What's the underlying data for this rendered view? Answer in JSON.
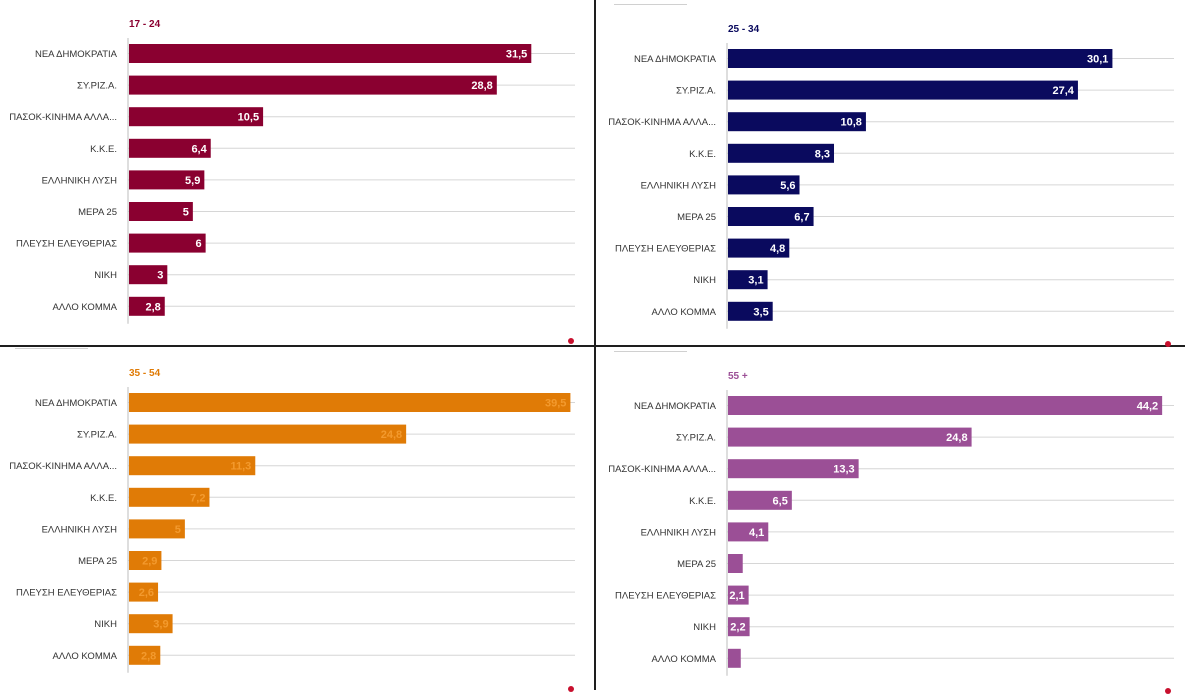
{
  "chart_data": [
    {
      "type": "bar",
      "orientation": "horizontal",
      "title": "17 - 24",
      "color": "#8a0030",
      "label_color": "#ffffff",
      "categories": [
        "ΝΕΑ ΔΗΜΟΚΡΑΤΙΑ",
        "ΣΥ.ΡΙΖ.Α.",
        "ΠΑΣΟΚ-ΚΙΝΗΜΑ ΑΛΛΑ...",
        "Κ.Κ.Ε.",
        "ΕΛΛΗΝΙΚΗ ΛΥΣΗ",
        "ΜΕΡΑ 25",
        "ΠΛΕΥΣΗ ΕΛΕΥΘΕΡΙΑΣ",
        "ΝΙΚΗ",
        "ΑΛΛΟ ΚΟΜΜΑ"
      ],
      "values": [
        31.5,
        28.8,
        10.5,
        6.4,
        5.9,
        5,
        6,
        3,
        2.8
      ],
      "labels": [
        "31,5",
        "28,8",
        "10,5",
        "6,4",
        "5,9",
        "5",
        "6",
        "3",
        "2,8"
      ],
      "xlim": [
        0,
        35
      ],
      "grid": true,
      "xlabel": "",
      "ylabel": ""
    },
    {
      "type": "bar",
      "orientation": "horizontal",
      "title": "25 - 34",
      "color": "#0a0a5e",
      "label_color": "#ffffff",
      "categories": [
        "ΝΕΑ ΔΗΜΟΚΡΑΤΙΑ",
        "ΣΥ.ΡΙΖ.Α.",
        "ΠΑΣΟΚ-ΚΙΝΗΜΑ ΑΛΛΑ...",
        "Κ.Κ.Ε.",
        "ΕΛΛΗΝΙΚΗ ΛΥΣΗ",
        "ΜΕΡΑ 25",
        "ΠΛΕΥΣΗ ΕΛΕΥΘΕΡΙΑΣ",
        "ΝΙΚΗ",
        "ΑΛΛΟ ΚΟΜΜΑ"
      ],
      "values": [
        30.1,
        27.4,
        10.8,
        8.3,
        5.6,
        6.7,
        4.8,
        3.1,
        3.5
      ],
      "labels": [
        "30,1",
        "27,4",
        "10,8",
        "8,3",
        "5,6",
        "6,7",
        "4,8",
        "3,1",
        "3,5"
      ],
      "xlim": [
        0,
        35
      ],
      "grid": true,
      "xlabel": "",
      "ylabel": ""
    },
    {
      "type": "bar",
      "orientation": "horizontal",
      "title": "35 - 54",
      "color": "#e07b06",
      "label_color": "#f39a2e",
      "categories": [
        "ΝΕΑ ΔΗΜΟΚΡΑΤΙΑ",
        "ΣΥ.ΡΙΖ.Α.",
        "ΠΑΣΟΚ-ΚΙΝΗΜΑ ΑΛΛΑ...",
        "Κ.Κ.Ε.",
        "ΕΛΛΗΝΙΚΗ ΛΥΣΗ",
        "ΜΕΡΑ 25",
        "ΠΛΕΥΣΗ ΕΛΕΥΘΕΡΙΑΣ",
        "ΝΙΚΗ",
        "ΑΛΛΟ ΚΟΜΜΑ"
      ],
      "values": [
        39.5,
        24.8,
        11.3,
        7.2,
        5,
        2.9,
        2.6,
        3.9,
        2.8
      ],
      "labels": [
        "39,5",
        "24,8",
        "11,3",
        "7,2",
        "5",
        "2,9",
        "2,6",
        "3,9",
        "2,8"
      ],
      "xlim": [
        0,
        40
      ],
      "grid": true,
      "xlabel": "",
      "ylabel": ""
    },
    {
      "type": "bar",
      "orientation": "horizontal",
      "title": "55 +",
      "color": "#9b4f96",
      "label_color": "#ffffff",
      "categories": [
        "ΝΕΑ ΔΗΜΟΚΡΑΤΙΑ",
        "ΣΥ.ΡΙΖ.Α.",
        "ΠΑΣΟΚ-ΚΙΝΗΜΑ ΑΛΛΑ...",
        "Κ.Κ.Ε.",
        "ΕΛΛΗΝΙΚΗ ΛΥΣΗ",
        "ΜΕΡΑ 25",
        "ΠΛΕΥΣΗ ΕΛΕΥΘΕΡΙΑΣ",
        "ΝΙΚΗ",
        "ΑΛΛΟ ΚΟΜΜΑ"
      ],
      "values": [
        44.2,
        24.8,
        13.3,
        6.5,
        4.1,
        1.5,
        2.1,
        2.2,
        1.3
      ],
      "labels": [
        "44,2",
        "24,8",
        "13,3",
        "6,5",
        "4,1",
        "",
        "2,1",
        "2,2",
        ""
      ],
      "xlim": [
        0,
        45
      ],
      "grid": true,
      "xlabel": "",
      "ylabel": ""
    }
  ]
}
